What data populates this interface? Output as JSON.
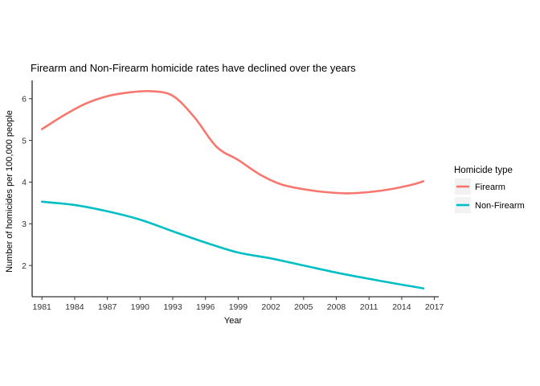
{
  "chart_data": {
    "type": "line",
    "title": "Firearm and Non-Firearm homicide rates have declined over the years",
    "xlabel": "Year",
    "ylabel": "Number of homicides per 100,000 people",
    "xlim": [
      1980.1,
      2017.4
    ],
    "ylim": [
      1.25,
      6.4
    ],
    "x_ticks": [
      1981,
      1984,
      1987,
      1990,
      1993,
      1996,
      1999,
      2002,
      2005,
      2008,
      2011,
      2014,
      2017
    ],
    "y_ticks": [
      2,
      3,
      4,
      5,
      6
    ],
    "grid": false,
    "legend": {
      "title": "Homicide type",
      "position": "right"
    },
    "series": [
      {
        "name": "Firearm",
        "color": "#F8766D",
        "x": [
          1981,
          1983,
          1985,
          1987,
          1989,
          1991,
          1993,
          1995,
          1997,
          1999,
          2001,
          2003,
          2005,
          2007,
          2009,
          2011,
          2013,
          2015,
          2016
        ],
        "y": [
          5.27,
          5.6,
          5.88,
          6.06,
          6.15,
          6.18,
          6.07,
          5.55,
          4.85,
          4.53,
          4.18,
          3.94,
          3.83,
          3.76,
          3.73,
          3.76,
          3.83,
          3.94,
          4.02
        ]
      },
      {
        "name": "Non-Firearm",
        "color": "#00BFC4",
        "x": [
          1981,
          1984,
          1987,
          1990,
          1993,
          1996,
          1999,
          2002,
          2005,
          2008,
          2011,
          2014,
          2016
        ],
        "y": [
          3.53,
          3.45,
          3.3,
          3.1,
          2.82,
          2.55,
          2.31,
          2.17,
          2.0,
          1.83,
          1.68,
          1.54,
          1.45
        ]
      }
    ]
  }
}
